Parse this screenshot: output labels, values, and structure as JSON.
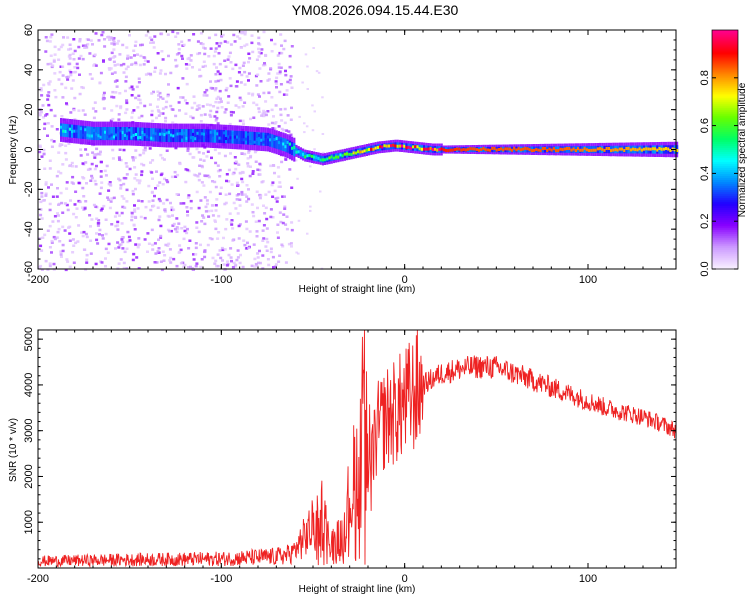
{
  "title": "YM08.2026.094.15.44.E30",
  "colors": {
    "snr_line": "#ee2222",
    "spectrogram_low": "#8a2be2",
    "axis": "#000000"
  },
  "chart_data": [
    {
      "type": "heatmap",
      "name": "spectrogram",
      "xlabel": "Height of straight line (km)",
      "ylabel": "Frequency (Hz)",
      "xlim": [
        -200,
        148
      ],
      "ylim": [
        -60,
        60
      ],
      "xticks": [
        -200,
        -100,
        0,
        100
      ],
      "yticks": [
        -60,
        -40,
        -20,
        0,
        20,
        40,
        60
      ],
      "colorbar": {
        "label": "Normalized spectral amplitude",
        "range": [
          0,
          1
        ],
        "ticks": [
          0.0,
          0.2,
          0.4,
          0.6,
          0.8
        ],
        "colormap": [
          "#f8f0ff",
          "#cc99ff",
          "#8800ff",
          "#2200ff",
          "#0088ff",
          "#00ffff",
          "#00ff66",
          "#66ff00",
          "#ffff00",
          "#ff8800",
          "#ff0000",
          "#ff0088"
        ]
      },
      "ridge": {
        "x": [
          -190,
          -170,
          -150,
          -130,
          -110,
          -90,
          -75,
          -65,
          -55,
          -45,
          -35,
          -25,
          -15,
          -5,
          5,
          15,
          40,
          80,
          120,
          148
        ],
        "freq": [
          10,
          8,
          8,
          7,
          7,
          6,
          5,
          2,
          -3,
          -5,
          -3,
          -1,
          1,
          2,
          1,
          0,
          0,
          0,
          0,
          0
        ],
        "amplitude": [
          0.45,
          0.4,
          0.4,
          0.4,
          0.35,
          0.35,
          0.35,
          0.45,
          0.5,
          0.55,
          0.6,
          0.7,
          0.85,
          0.9,
          0.9,
          0.9,
          0.85,
          0.85,
          0.8,
          0.75
        ]
      },
      "noise_extent": [
        -200,
        -62
      ]
    },
    {
      "type": "line",
      "name": "snr",
      "xlabel": "Height of straight line (km)",
      "ylabel": "SNR (10 * v/v)",
      "xlim": [
        -200,
        148
      ],
      "ylim": [
        0,
        5200
      ],
      "xticks": [
        -200,
        -100,
        0,
        100
      ],
      "yticks": [
        1000,
        2000,
        3000,
        4000,
        5000
      ],
      "trend": {
        "x": [
          -200,
          -150,
          -100,
          -70,
          -62,
          -55,
          -48,
          -45,
          -40,
          -35,
          -30,
          -25,
          -22,
          -20,
          -15,
          -10,
          -5,
          0,
          10,
          20,
          30,
          40,
          50,
          60,
          70,
          80,
          90,
          100,
          110,
          120,
          130,
          140,
          148
        ],
        "y": [
          150,
          180,
          200,
          250,
          300,
          650,
          1000,
          1200,
          500,
          700,
          1500,
          2400,
          3500,
          2000,
          3000,
          3300,
          3400,
          3600,
          4000,
          4250,
          4350,
          4400,
          4380,
          4250,
          4100,
          3950,
          3800,
          3650,
          3500,
          3400,
          3300,
          3150,
          3000
        ]
      }
    }
  ]
}
